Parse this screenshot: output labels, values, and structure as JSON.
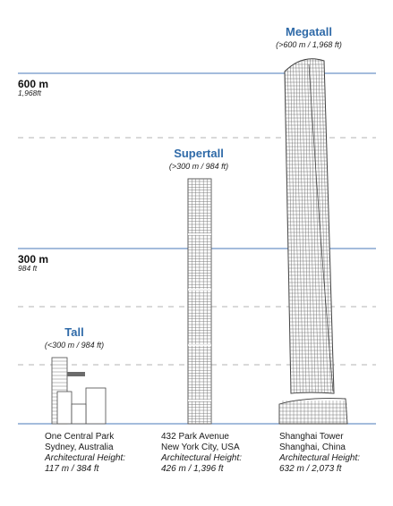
{
  "levels": [
    {
      "label": "600 m",
      "sub": "1,968ft"
    },
    {
      "label": "300 m",
      "sub": "984 ft"
    }
  ],
  "categories": [
    {
      "title": "Tall",
      "range": "(<300 m / 984 ft)"
    },
    {
      "title": "Supertall",
      "range": "(>300 m / 984 ft)"
    },
    {
      "title": "Megatall",
      "range": "(>600 m / 1,968 ft)"
    }
  ],
  "buildings": [
    {
      "name": "One Central Park",
      "location": "Sydney, Australia",
      "height_label": "Architectural Height:",
      "height_value": "117 m / 384 ft",
      "height_m": 117
    },
    {
      "name": "432 Park Avenue",
      "location": "New York City, USA",
      "height_label": "Architectural Height:",
      "height_value": "426 m / 1,396 ft",
      "height_m": 426
    },
    {
      "name": "Shanghai Tower",
      "location": "Shanghai, China",
      "height_label": "Architectural Height:",
      "height_value": "632 m / 2,073 ft",
      "height_m": 632
    }
  ],
  "colors": {
    "accent": "#2f6aa8",
    "solid_line": "#4a78b8",
    "dashed_line": "#9a9a9a",
    "building": "#4a4a4a"
  }
}
